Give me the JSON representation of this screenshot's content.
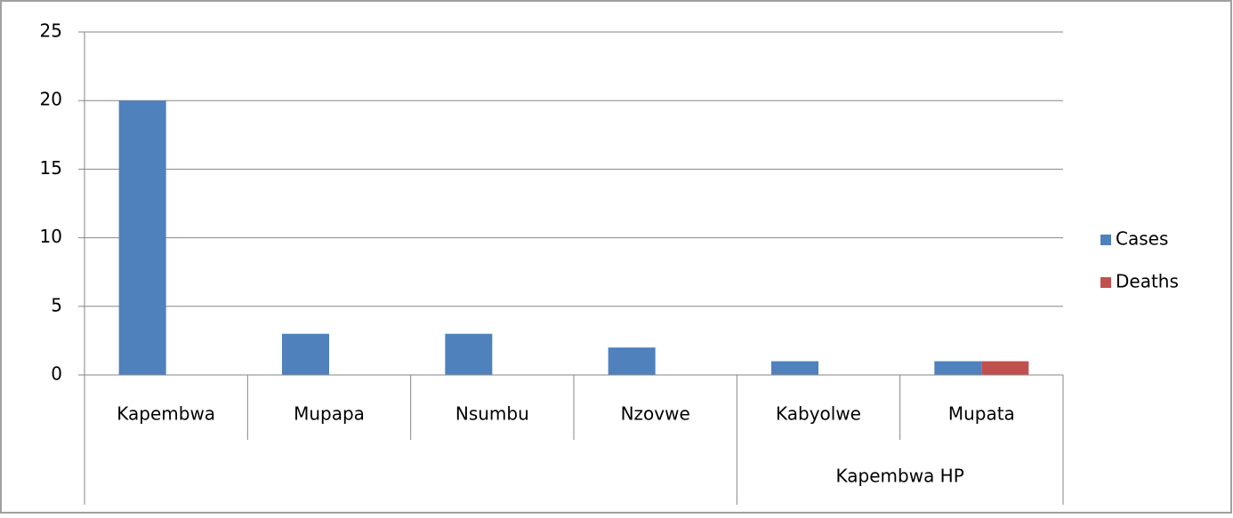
{
  "chart_data": {
    "type": "bar",
    "categories": [
      "Kapembwa",
      "Mupapa",
      "Nsumbu",
      "Nzovwe",
      "Kabyolwe",
      "Mupata"
    ],
    "category_groups": [
      {
        "label": "Kapembwa HP",
        "first": 4,
        "last": 5
      }
    ],
    "series": [
      {
        "name": "Cases",
        "color": "#4f81bd",
        "values": [
          20,
          3,
          3,
          2,
          1,
          1
        ]
      },
      {
        "name": "Deaths",
        "color": "#c0504d",
        "values": [
          0,
          0,
          0,
          0,
          0,
          1
        ]
      }
    ],
    "ylim": [
      0,
      25
    ],
    "yticks": [
      0,
      5,
      10,
      15,
      20,
      25
    ],
    "grid": true,
    "legend": "right"
  }
}
